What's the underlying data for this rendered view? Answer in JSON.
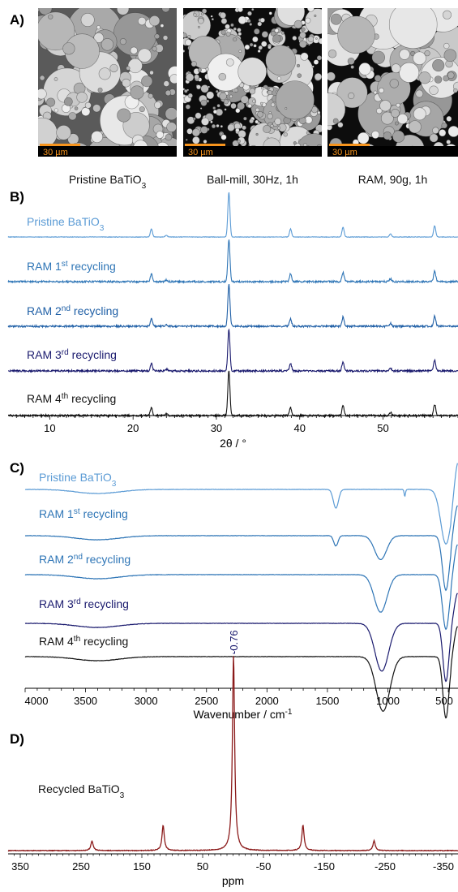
{
  "panelA": {
    "label": "A)",
    "images": [
      {
        "caption": "Pristine BaTiO",
        "caption_sub": "3",
        "scale": "30 µm",
        "style": "pristine"
      },
      {
        "caption": "Ball-mill, 30Hz, 1h",
        "caption_sub": "",
        "scale": "30 µm",
        "style": "ballmill"
      },
      {
        "caption": "RAM, 90g, 1h",
        "caption_sub": "",
        "scale": "30 µm",
        "style": "ram"
      }
    ],
    "scalebar_color": "#f7941d"
  },
  "chart_data": [
    {
      "panel": "B)",
      "type": "line",
      "xlabel": "2θ / °",
      "xlim": [
        5,
        59
      ],
      "xticks": [
        10,
        20,
        30,
        40,
        50
      ],
      "peaks": [
        {
          "x": 22.2,
          "h": 0.18
        },
        {
          "x": 24.0,
          "h": 0.04
        },
        {
          "x": 31.5,
          "h": 1.0
        },
        {
          "x": 38.9,
          "h": 0.18
        },
        {
          "x": 45.2,
          "h": 0.22
        },
        {
          "x": 50.9,
          "h": 0.07
        },
        {
          "x": 56.2,
          "h": 0.25
        }
      ],
      "series": [
        {
          "name": "Pristine BaTiO",
          "sub": "3",
          "sup": "",
          "suffix": "",
          "color": "#5b9bd5"
        },
        {
          "name": "RAM 1",
          "sub": "",
          "sup": "st",
          "suffix": " recycling",
          "color": "#2e75b6"
        },
        {
          "name": "RAM 2",
          "sub": "",
          "sup": "nd",
          "suffix": " recycling",
          "color": "#1f5fa6"
        },
        {
          "name": "RAM 3",
          "sub": "",
          "sup": "rd",
          "suffix": " recycling",
          "color": "#1a1a6e"
        },
        {
          "name": "RAM 4",
          "sub": "",
          "sup": "th",
          "suffix": " recycling",
          "color": "#111111"
        }
      ]
    },
    {
      "panel": "C)",
      "type": "line",
      "xlabel": "Wavenumber / cm",
      "xlabel_sup": "-1",
      "xlim": [
        4000,
        420
      ],
      "xticks": [
        4000,
        3500,
        3000,
        2500,
        2000,
        1500,
        1000,
        500
      ],
      "series": [
        {
          "name": "Pristine BaTiO",
          "sub": "3",
          "sup": "",
          "suffix": "",
          "color": "#5b9bd5",
          "bands": [
            {
              "x": 1430,
              "w": 30,
              "d": 0.55
            },
            {
              "x": 860,
              "w": 8,
              "d": 0.2
            },
            {
              "x": 520,
              "w": 60,
              "d": 1.6
            }
          ]
        },
        {
          "name": "RAM 1",
          "sub": "",
          "sup": "st",
          "suffix": " recycling",
          "color": "#2e75b6",
          "bands": [
            {
              "x": 1430,
              "w": 25,
              "d": 0.3
            },
            {
              "x": 1060,
              "w": 70,
              "d": 0.7
            },
            {
              "x": 520,
              "w": 40,
              "d": 1.6
            }
          ]
        },
        {
          "name": "RAM 2",
          "sub": "",
          "sup": "nd",
          "suffix": " recycling",
          "color": "#2e75b6",
          "bands": [
            {
              "x": 1060,
              "w": 75,
              "d": 1.1
            },
            {
              "x": 520,
              "w": 40,
              "d": 1.6
            }
          ]
        },
        {
          "name": "RAM 3",
          "sub": "",
          "sup": "rd",
          "suffix": " recycling",
          "color": "#1a1a6e",
          "bands": [
            {
              "x": 1050,
              "w": 80,
              "d": 1.4
            },
            {
              "x": 520,
              "w": 35,
              "d": 1.7
            }
          ]
        },
        {
          "name": "RAM 4",
          "sub": "",
          "sup": "th",
          "suffix": " recycling",
          "color": "#111111",
          "bands": [
            {
              "x": 1040,
              "w": 80,
              "d": 1.6
            },
            {
              "x": 520,
              "w": 35,
              "d": 1.8
            }
          ]
        }
      ]
    },
    {
      "panel": "D)",
      "type": "line",
      "xlabel": "ppm",
      "xlim": [
        370,
        -370
      ],
      "xticks": [
        350,
        250,
        150,
        50,
        -50,
        -150,
        -250,
        -350
      ],
      "annotation": "-0.76",
      "series": [
        {
          "name": "Recycled BaTiO",
          "sub": "3",
          "color": "#8b1a1a",
          "peaks": [
            {
              "x": -0.76,
              "h": 1.0
            },
            {
              "x": 115,
              "h": 0.13
            },
            {
              "x": -115,
              "h": 0.13
            },
            {
              "x": 232,
              "h": 0.05
            },
            {
              "x": -232,
              "h": 0.05
            }
          ]
        }
      ]
    }
  ]
}
